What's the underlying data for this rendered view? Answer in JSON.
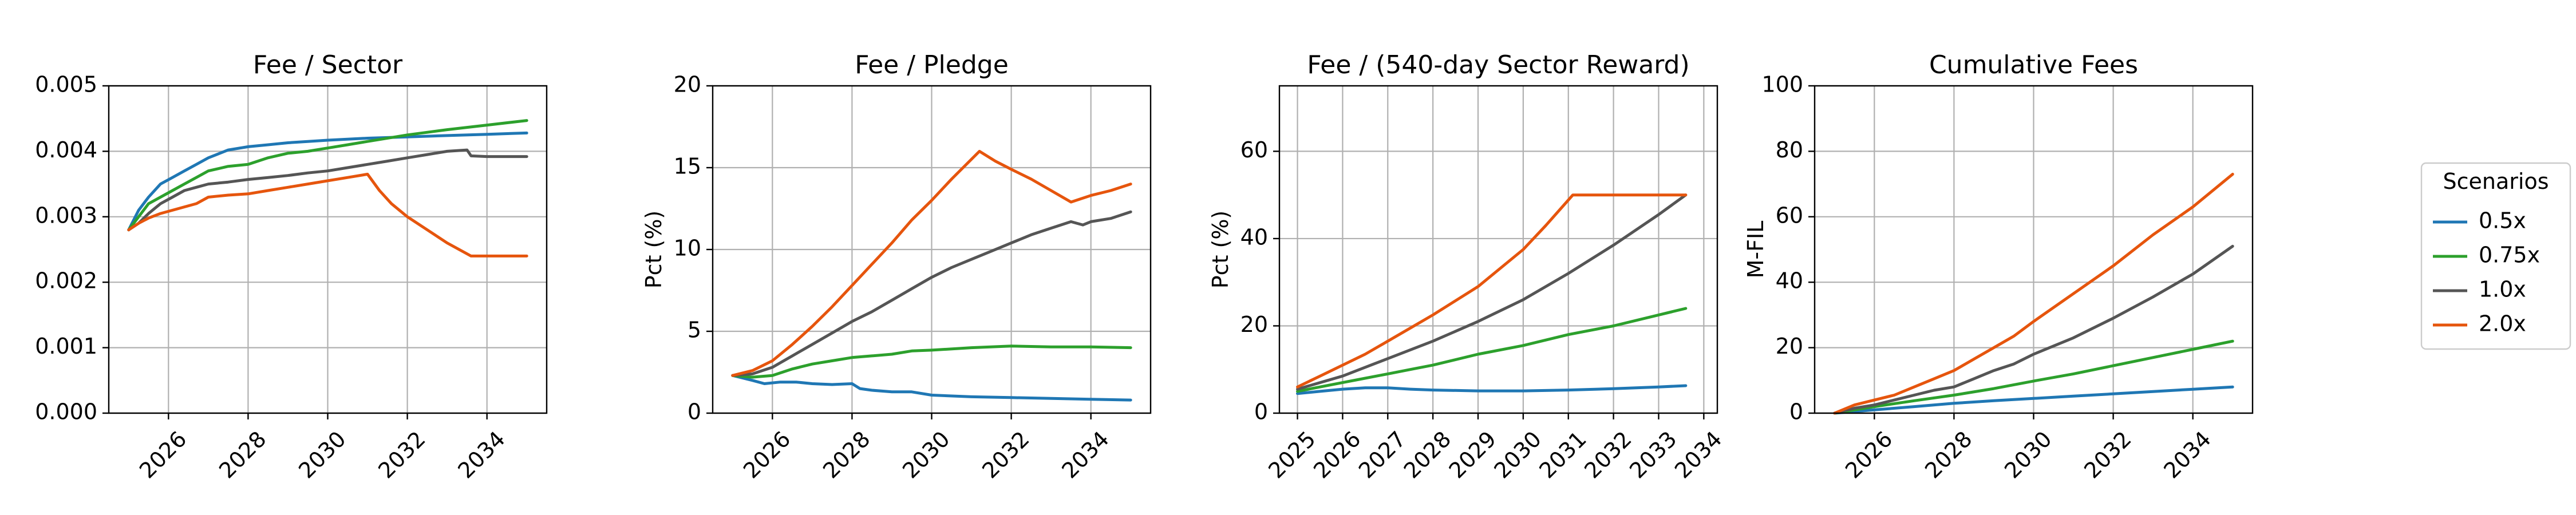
{
  "colors": {
    "0.5x": "#1f77b4",
    "0.75x": "#2ca02c",
    "1.0x": "#555555",
    "2.0x": "#e6550d"
  },
  "legend": {
    "title": "Scenarios",
    "placement": "right",
    "entries": [
      "0.5x",
      "0.75x",
      "1.0x",
      "2.0x"
    ]
  },
  "chart_data": [
    {
      "type": "line",
      "title": "Fee / Sector",
      "xlabel": "",
      "ylabel": "",
      "xlim": [
        2024.5,
        2035.5
      ],
      "ylim": [
        0,
        0.005
      ],
      "grid": true,
      "xticks": [
        2026,
        2028,
        2030,
        2032,
        2034
      ],
      "xtick_labels": [
        "2026",
        "2028",
        "2030",
        "2032",
        "2034"
      ],
      "xtick_rotation": 45,
      "yticks": [
        0,
        0.001,
        0.002,
        0.003,
        0.004,
        0.005
      ],
      "ytick_labels": [
        "0.000",
        "0.001",
        "0.002",
        "0.003",
        "0.004",
        "0.005"
      ],
      "series": [
        {
          "name": "0.5x",
          "x": [
            2025,
            2025.25,
            2025.5,
            2025.8,
            2026.1,
            2026.4,
            2026.7,
            2027.0,
            2027.5,
            2028.0,
            2028.5,
            2029.0,
            2029.5,
            2030.0,
            2031.0,
            2032.0,
            2033.0,
            2034.0,
            2035.0
          ],
          "y": [
            0.0028,
            0.0031,
            0.0033,
            0.0035,
            0.0036,
            0.0037,
            0.0038,
            0.0039,
            0.00402,
            0.00407,
            0.0041,
            0.00413,
            0.00415,
            0.00417,
            0.0042,
            0.00422,
            0.00424,
            0.00426,
            0.00428
          ]
        },
        {
          "name": "0.75x",
          "x": [
            2025,
            2025.25,
            2025.5,
            2025.8,
            2026.1,
            2026.4,
            2026.7,
            2027.0,
            2027.5,
            2028.0,
            2028.5,
            2029.0,
            2029.5,
            2030.0,
            2030.5,
            2031.0,
            2032.0,
            2033.0,
            2034.0,
            2035.0
          ],
          "y": [
            0.0028,
            0.003,
            0.0032,
            0.0033,
            0.0034,
            0.0035,
            0.0036,
            0.0037,
            0.00377,
            0.0038,
            0.0039,
            0.00397,
            0.004,
            0.00405,
            0.0041,
            0.00415,
            0.00425,
            0.00433,
            0.0044,
            0.00447
          ]
        },
        {
          "name": "1.0x",
          "x": [
            2025,
            2025.25,
            2025.5,
            2025.8,
            2026.1,
            2026.4,
            2026.7,
            2027.0,
            2027.5,
            2028.0,
            2028.5,
            2029.0,
            2029.5,
            2030.0,
            2030.5,
            2031.0,
            2031.5,
            2032.0,
            2032.5,
            2033.0,
            2033.5,
            2033.6,
            2034.0,
            2034.5,
            2035.0
          ],
          "y": [
            0.0028,
            0.0029,
            0.00305,
            0.0032,
            0.0033,
            0.0034,
            0.00345,
            0.0035,
            0.00353,
            0.00357,
            0.0036,
            0.00363,
            0.00367,
            0.0037,
            0.00375,
            0.0038,
            0.00385,
            0.0039,
            0.00395,
            0.004,
            0.00402,
            0.00393,
            0.00392,
            0.00392,
            0.00392
          ]
        },
        {
          "name": "2.0x",
          "x": [
            2025,
            2025.25,
            2025.5,
            2025.8,
            2026.1,
            2026.4,
            2026.7,
            2027.0,
            2027.5,
            2028.0,
            2028.5,
            2029.0,
            2029.5,
            2030.0,
            2030.5,
            2031.0,
            2031.3,
            2031.6,
            2032.0,
            2032.5,
            2033.0,
            2033.6,
            2034.0,
            2034.5,
            2035.0
          ],
          "y": [
            0.0028,
            0.0029,
            0.00298,
            0.00305,
            0.0031,
            0.00315,
            0.0032,
            0.0033,
            0.00333,
            0.00335,
            0.0034,
            0.00345,
            0.0035,
            0.00355,
            0.0036,
            0.00365,
            0.0034,
            0.0032,
            0.003,
            0.0028,
            0.0026,
            0.0024,
            0.0024,
            0.0024,
            0.0024
          ]
        }
      ]
    },
    {
      "type": "line",
      "title": "Fee / Pledge",
      "xlabel": "",
      "ylabel": "Pct (%)",
      "xlim": [
        2024.5,
        2035.5
      ],
      "ylim": [
        0,
        20
      ],
      "grid": true,
      "xticks": [
        2026,
        2028,
        2030,
        2032,
        2034
      ],
      "xtick_labels": [
        "2026",
        "2028",
        "2030",
        "2032",
        "2034"
      ],
      "xtick_rotation": 45,
      "yticks": [
        0,
        5,
        10,
        15,
        20
      ],
      "ytick_labels": [
        "0",
        "5",
        "10",
        "15",
        "20"
      ],
      "series": [
        {
          "name": "0.5x",
          "x": [
            2025,
            2025.5,
            2025.8,
            2026.2,
            2026.6,
            2027.0,
            2027.5,
            2028.0,
            2028.2,
            2028.5,
            2029.0,
            2029.5,
            2030.0,
            2031.0,
            2032.0,
            2033.0,
            2034.0,
            2035.0
          ],
          "y": [
            2.3,
            2.0,
            1.8,
            1.9,
            1.9,
            1.8,
            1.75,
            1.8,
            1.5,
            1.4,
            1.3,
            1.3,
            1.1,
            1.0,
            0.95,
            0.9,
            0.85,
            0.8
          ]
        },
        {
          "name": "0.75x",
          "x": [
            2025,
            2025.5,
            2026.0,
            2026.5,
            2027.0,
            2027.5,
            2028.0,
            2028.5,
            2029.0,
            2029.5,
            2030.0,
            2031.0,
            2032.0,
            2033.0,
            2034.0,
            2035.0
          ],
          "y": [
            2.3,
            2.2,
            2.3,
            2.7,
            3.0,
            3.2,
            3.4,
            3.5,
            3.6,
            3.8,
            3.85,
            4.0,
            4.1,
            4.05,
            4.05,
            4.0
          ]
        },
        {
          "name": "1.0x",
          "x": [
            2025,
            2025.5,
            2026.0,
            2026.5,
            2027.0,
            2027.5,
            2028.0,
            2028.5,
            2029.0,
            2029.5,
            2030.0,
            2030.5,
            2031.0,
            2031.5,
            2032.0,
            2032.5,
            2033.0,
            2033.5,
            2033.8,
            2034.0,
            2034.5,
            2035.0
          ],
          "y": [
            2.3,
            2.4,
            2.8,
            3.5,
            4.2,
            4.9,
            5.6,
            6.2,
            6.9,
            7.6,
            8.3,
            8.9,
            9.4,
            9.9,
            10.4,
            10.9,
            11.3,
            11.7,
            11.5,
            11.7,
            11.9,
            12.3
          ]
        },
        {
          "name": "2.0x",
          "x": [
            2025,
            2025.5,
            2026.0,
            2026.5,
            2027.0,
            2027.5,
            2028.0,
            2028.5,
            2029.0,
            2029.5,
            2030.0,
            2030.5,
            2031.2,
            2031.6,
            2032.0,
            2032.5,
            2033.0,
            2033.5,
            2034.0,
            2034.5,
            2035.0
          ],
          "y": [
            2.3,
            2.6,
            3.2,
            4.2,
            5.3,
            6.5,
            7.8,
            9.1,
            10.4,
            11.8,
            13.0,
            14.3,
            16.0,
            15.4,
            14.9,
            14.3,
            13.6,
            12.9,
            13.3,
            13.6,
            14.0
          ]
        }
      ]
    },
    {
      "type": "line",
      "title": "Fee / (540-day Sector Reward)",
      "xlabel": "",
      "ylabel": "Pct (%)",
      "xlim": [
        2024.6,
        2034.3
      ],
      "ylim": [
        0,
        75
      ],
      "grid": true,
      "xticks": [
        2025,
        2026,
        2027,
        2028,
        2029,
        2030,
        2031,
        2032,
        2033,
        2034
      ],
      "xtick_labels": [
        "2025",
        "2026",
        "2027",
        "2028",
        "2029",
        "2030",
        "2031",
        "2032",
        "2033",
        "2034"
      ],
      "xtick_rotation": 45,
      "yticks": [
        0,
        20,
        40,
        60
      ],
      "ytick_labels": [
        "0",
        "20",
        "40",
        "60"
      ],
      "series": [
        {
          "name": "0.5x",
          "x": [
            2025,
            2025.5,
            2026.0,
            2026.5,
            2027.0,
            2027.5,
            2028.0,
            2029.0,
            2030.0,
            2031.0,
            2032.0,
            2033.0,
            2033.6
          ],
          "y": [
            4.5,
            5.0,
            5.5,
            5.8,
            5.8,
            5.5,
            5.3,
            5.1,
            5.1,
            5.3,
            5.6,
            6.0,
            6.3
          ]
        },
        {
          "name": "0.75x",
          "x": [
            2025,
            2025.5,
            2026.0,
            2026.5,
            2027.0,
            2027.5,
            2028.0,
            2029.0,
            2030.0,
            2031.0,
            2032.0,
            2033.0,
            2033.6
          ],
          "y": [
            5.0,
            6.0,
            7.0,
            8.0,
            9.0,
            10.0,
            11.0,
            13.5,
            15.5,
            18.0,
            20.0,
            22.5,
            24.0
          ]
        },
        {
          "name": "1.0x",
          "x": [
            2025,
            2025.5,
            2026.0,
            2026.5,
            2027.0,
            2027.5,
            2028.0,
            2029.0,
            2030.0,
            2031.0,
            2032.0,
            2033.0,
            2033.6
          ],
          "y": [
            5.5,
            7.0,
            8.5,
            10.5,
            12.5,
            14.5,
            16.5,
            21.0,
            26.0,
            32.0,
            38.5,
            45.5,
            50.0
          ]
        },
        {
          "name": "2.0x",
          "x": [
            2025,
            2025.5,
            2026.0,
            2026.5,
            2027.0,
            2027.5,
            2028.0,
            2029.0,
            2030.0,
            2030.5,
            2031.1,
            2031.5,
            2032.0,
            2033.0,
            2033.6
          ],
          "y": [
            6.0,
            8.5,
            11.0,
            13.5,
            16.5,
            19.5,
            22.5,
            29.0,
            37.5,
            43.0,
            50.0,
            50.0,
            50.0,
            50.0,
            50.0
          ]
        }
      ]
    },
    {
      "type": "line",
      "title": "Cumulative Fees",
      "xlabel": "",
      "ylabel": "M-FIL",
      "xlim": [
        2024.5,
        2035.5
      ],
      "ylim": [
        0,
        100
      ],
      "grid": true,
      "xticks": [
        2026,
        2028,
        2030,
        2032,
        2034
      ],
      "xtick_labels": [
        "2026",
        "2028",
        "2030",
        "2032",
        "2034"
      ],
      "xtick_rotation": 45,
      "yticks": [
        0,
        20,
        40,
        60,
        80,
        100
      ],
      "ytick_labels": [
        "0",
        "20",
        "40",
        "60",
        "80",
        "100"
      ],
      "series": [
        {
          "name": "0.5x",
          "x": [
            2025,
            2026,
            2027,
            2028,
            2029,
            2030,
            2031,
            2032,
            2033,
            2034,
            2035
          ],
          "y": [
            0,
            1.0,
            2.0,
            3.0,
            3.8,
            4.5,
            5.2,
            5.9,
            6.6,
            7.3,
            8.0
          ]
        },
        {
          "name": "0.75x",
          "x": [
            2025,
            2026,
            2027,
            2028,
            2029,
            2030,
            2031,
            2032,
            2033,
            2034,
            2035
          ],
          "y": [
            0,
            2.0,
            3.8,
            5.5,
            7.5,
            9.8,
            12.0,
            14.5,
            17.0,
            19.5,
            22.0
          ]
        },
        {
          "name": "1.0x",
          "x": [
            2025,
            2025.5,
            2026,
            2026.5,
            2027,
            2027.5,
            2028,
            2028.5,
            2029,
            2029.5,
            2030,
            2031,
            2032,
            2033,
            2034,
            2035
          ],
          "y": [
            0,
            1.5,
            2.5,
            4.0,
            5.5,
            7.0,
            8.0,
            10.5,
            13.0,
            15.0,
            18.0,
            23.0,
            29.0,
            35.5,
            42.5,
            51.0
          ]
        },
        {
          "name": "2.0x",
          "x": [
            2025,
            2025.5,
            2026,
            2026.5,
            2027,
            2027.5,
            2028,
            2028.5,
            2029,
            2029.5,
            2030,
            2031,
            2032,
            2033,
            2034,
            2035
          ],
          "y": [
            0,
            2.5,
            4.0,
            5.5,
            8.0,
            10.5,
            13.0,
            16.5,
            20.0,
            23.5,
            28.0,
            36.5,
            45.0,
            54.5,
            63.0,
            73.0
          ]
        }
      ]
    }
  ]
}
